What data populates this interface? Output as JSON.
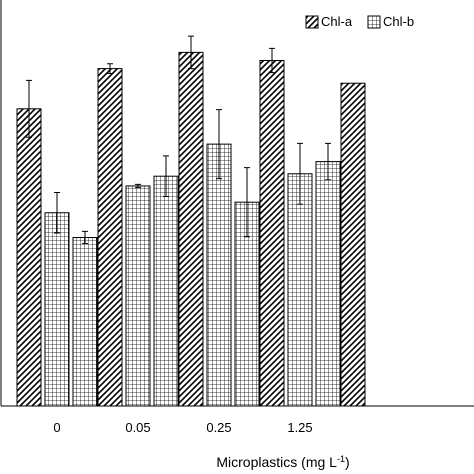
{
  "chart_data": {
    "type": "bar",
    "categories": [
      "0",
      "0.05",
      "0.25",
      "1.25",
      ""
    ],
    "series": [
      {
        "name": "Chl-a",
        "pattern": "diagonal-hatch",
        "values": [
          0.732,
          0.831,
          0.871,
          0.851,
          0.795
        ],
        "errors": [
          0.07,
          0.012,
          0.04,
          0.03,
          0.0
        ]
      },
      {
        "name": "Chl-b",
        "pattern": "grid",
        "values": [
          0.476,
          0.542,
          0.645,
          0.572,
          0.0
        ],
        "errors": [
          0.05,
          0.004,
          0.085,
          0.075,
          0.0
        ]
      },
      {
        "name": "",
        "pattern": "grid",
        "values": [
          0.415,
          0.566,
          0.502,
          0.602,
          0.0
        ],
        "errors": [
          0.015,
          0.05,
          0.085,
          0.045,
          0.0
        ]
      }
    ],
    "xlabel": "Microplastics (mg L",
    "xlabel_sup": "-1",
    "xlabel_close": ")",
    "ylim": [
      0,
      1
    ],
    "grid": false,
    "legend_position": "top-right",
    "colors": {
      "bar_fill": "#ffffff",
      "hatch": "#000000",
      "axis": "#000000"
    }
  }
}
